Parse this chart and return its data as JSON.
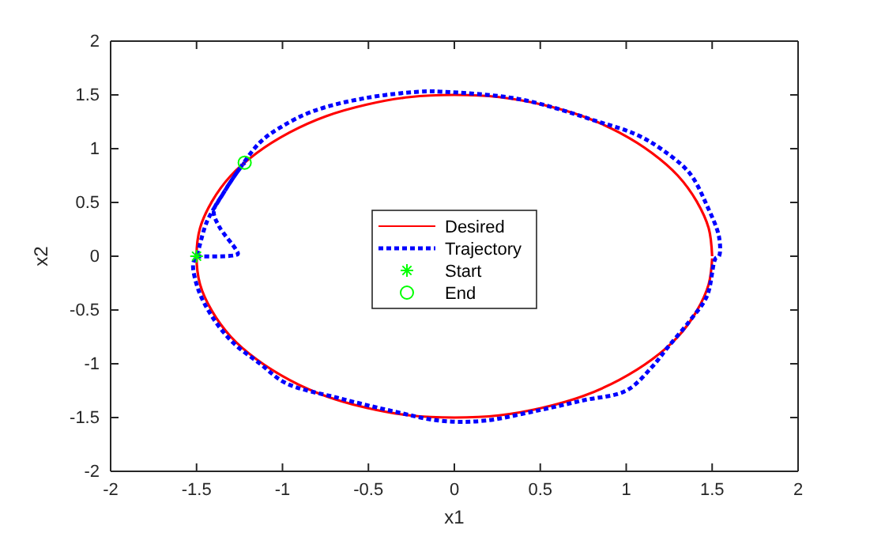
{
  "chart_data": {
    "type": "line",
    "xlabel": "x1",
    "ylabel": "x2",
    "xlim": [
      -2,
      2
    ],
    "ylim": [
      -2,
      2
    ],
    "xticks": [
      -2,
      -1.5,
      -1,
      -0.5,
      0,
      0.5,
      1,
      1.5,
      2
    ],
    "yticks": [
      -2,
      -1.5,
      -1,
      -0.5,
      0,
      0.5,
      1,
      1.5,
      2
    ],
    "grid": false,
    "legend": "center",
    "series": [
      {
        "name": "Desired",
        "color": "#ff0000",
        "line_style": "solid",
        "marker": "none",
        "x": [
          1.5,
          1.48,
          1.41,
          1.3,
          1.15,
          0.96,
          0.75,
          0.51,
          0.26,
          0,
          -0.26,
          -0.51,
          -0.75,
          -0.96,
          -1.15,
          -1.3,
          -1.41,
          -1.48,
          -1.5,
          -1.48,
          -1.41,
          -1.3,
          -1.15,
          -0.96,
          -0.75,
          -0.51,
          -0.26,
          0,
          0.26,
          0.51,
          0.75,
          0.96,
          1.15,
          1.3,
          1.41,
          1.48,
          1.5
        ],
        "values": [
          0,
          0.26,
          0.51,
          0.75,
          0.96,
          1.15,
          1.3,
          1.41,
          1.48,
          1.5,
          1.48,
          1.41,
          1.3,
          1.15,
          0.96,
          0.75,
          0.51,
          0.26,
          0,
          -0.26,
          -0.51,
          -0.75,
          -0.96,
          -1.15,
          -1.3,
          -1.41,
          -1.48,
          -1.5,
          -1.48,
          -1.41,
          -1.3,
          -1.15,
          -0.96,
          -0.75,
          -0.51,
          -0.26,
          -0.02
        ]
      },
      {
        "name": "Trajectory",
        "color": "#0000ff",
        "line_style": "dotted",
        "marker": "none",
        "x": [
          -1.5,
          -1.26,
          -1.27,
          -1.37,
          -1.4,
          -1.35,
          -1.26,
          -1.13,
          -1.01,
          -0.82,
          -0.52,
          -0.2,
          -0.08,
          0.38,
          0.84,
          1.06,
          1.21,
          1.37,
          1.47,
          1.54,
          1.54,
          1.52,
          1.47,
          1.37,
          1.24,
          1.15,
          1,
          0.75,
          0.47,
          0.17,
          -0.08,
          -0.36,
          -0.67,
          -0.98,
          -1.13,
          -1.29,
          -1.41,
          -1.49,
          -1.52,
          -1.5,
          -1.44,
          -1.35,
          -1.26,
          -1.22
        ],
        "values": [
          0,
          0.02,
          0.06,
          0.28,
          0.42,
          0.57,
          0.79,
          1.06,
          1.2,
          1.35,
          1.47,
          1.53,
          1.53,
          1.46,
          1.25,
          1.13,
          0.99,
          0.77,
          0.47,
          0.18,
          0,
          -0.02,
          -0.37,
          -0.6,
          -0.85,
          -1.03,
          -1.25,
          -1.34,
          -1.44,
          -1.53,
          -1.53,
          -1.44,
          -1.32,
          -1.18,
          -1,
          -0.8,
          -0.56,
          -0.31,
          -0.07,
          0,
          0.32,
          0.57,
          0.79,
          0.87
        ]
      },
      {
        "name": "Start",
        "type": "scatter",
        "color": "#00ff00",
        "marker": "cross",
        "x": [
          -1.5
        ],
        "values": [
          0
        ]
      },
      {
        "name": "End",
        "type": "scatter",
        "color": "#00ff00",
        "marker": "circle",
        "x": [
          -1.22
        ],
        "values": [
          0.87
        ]
      }
    ]
  }
}
